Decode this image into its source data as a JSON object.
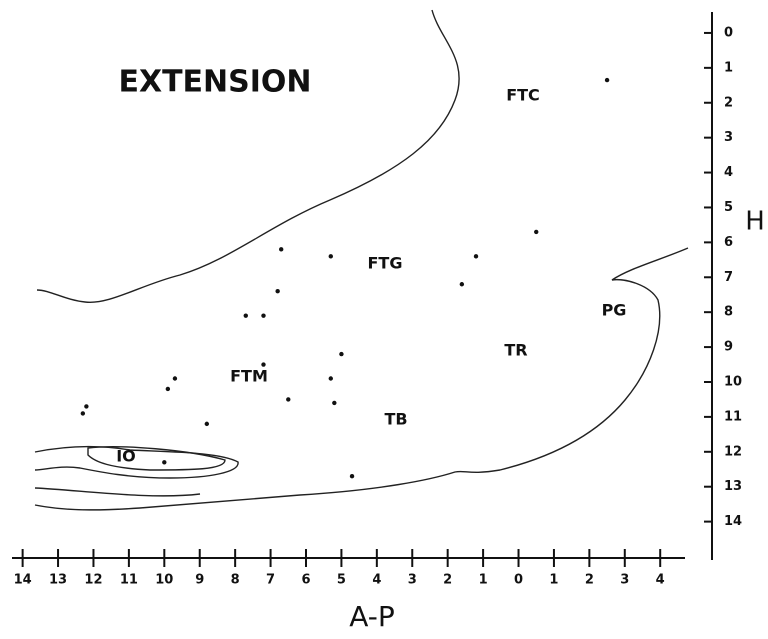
{
  "chart_data": {
    "type": "scatter",
    "title": "EXTENSION",
    "x_label": "A-P",
    "y_label": "H",
    "color": "#111111",
    "annotations": [
      "FTC",
      "FTG",
      "PG",
      "TR",
      "FTM",
      "TB",
      "IO"
    ],
    "x": [
      -2.5,
      -0.5,
      1.2,
      1.6,
      5.3,
      6.7,
      6.8,
      7.7,
      7.2,
      5.0,
      7.2,
      9.7,
      9.9,
      5.3,
      6.5,
      5.2,
      12.2,
      12.3,
      8.8,
      10.0,
      4.7
    ],
    "values": [
      1.35,
      5.7,
      6.4,
      7.2,
      6.4,
      6.2,
      7.4,
      8.1,
      8.1,
      9.2,
      9.5,
      9.9,
      10.2,
      9.9,
      10.5,
      10.6,
      10.7,
      10.9,
      11.2,
      12.3,
      12.7
    ],
    "xlim": [
      14.3,
      -4.7
    ],
    "xticks": [
      14,
      13,
      12,
      11,
      10,
      9,
      8,
      7,
      6,
      5,
      4,
      3,
      2,
      1,
      0,
      {
        "value": -1,
        "label": "1"
      },
      {
        "value": -2,
        "label": "2"
      },
      {
        "value": -3,
        "label": "3"
      },
      {
        "value": -4,
        "label": "4"
      }
    ],
    "ylim": [
      -0.6,
      15.1
    ],
    "yticks": [
      0,
      1,
      2,
      3,
      4,
      5,
      6,
      7,
      8,
      9,
      10,
      11,
      12,
      13,
      14
    ]
  }
}
